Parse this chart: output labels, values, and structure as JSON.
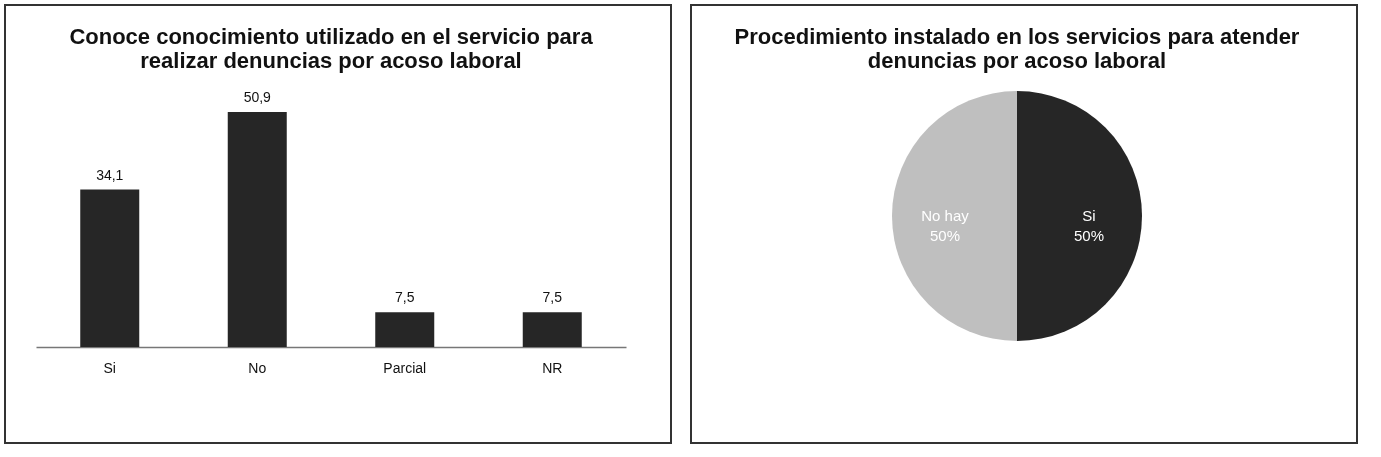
{
  "chart_data": [
    {
      "type": "bar",
      "title": "Conoce conocimiento utilizado en el servicio para realizar denuncias por acoso laboral",
      "categories": [
        "Si",
        "No",
        "Parcial",
        "NR"
      ],
      "values": [
        34.1,
        50.9,
        7.5,
        7.5
      ],
      "value_labels": [
        "34,1",
        "50,9",
        "7,5",
        "7,5"
      ],
      "color": "#262626"
    },
    {
      "type": "pie",
      "title": "Procedimiento instalado en los servicios para atender denuncias por acoso laboral",
      "categories": [
        "Si",
        "No hay"
      ],
      "values": [
        50,
        50
      ],
      "value_labels": [
        "50%",
        "50%"
      ],
      "colors": [
        "#262626",
        "#bfbfbf"
      ]
    }
  ]
}
